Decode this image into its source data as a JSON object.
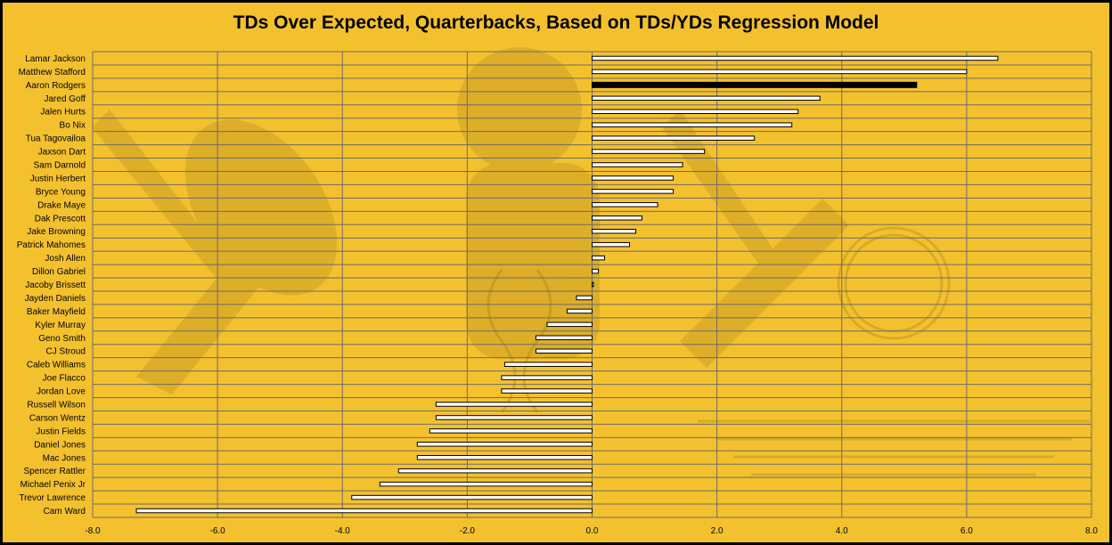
{
  "chart_data": {
    "type": "bar",
    "orientation": "horizontal",
    "title": "TDs Over Expected, Quarterbacks, Based on TDs/YDs Regression Model",
    "categories": [
      "Lamar Jackson",
      "Matthew Stafford",
      "Aaron Rodgers",
      "Jared Goff",
      "Jalen Hurts",
      "Bo Nix",
      "Tua Tagovailoa",
      "Jaxson Dart",
      "Sam Darnold",
      "Justin Herbert",
      "Bryce Young",
      "Drake Maye",
      "Dak Prescott",
      "Jake Browning",
      "Patrick Mahomes",
      "Josh Allen",
      "Dillon Gabriel",
      "Jacoby Brissett",
      "Jayden Daniels",
      "Baker Mayfield",
      "Kyler Murray",
      "Geno Smith",
      "CJ Stroud",
      "Caleb Williams",
      "Joe Flacco",
      "Jordan Love",
      "Russell Wilson",
      "Carson Wentz",
      "Justin Fields",
      "Daniel Jones",
      "Mac Jones",
      "Spencer Rattler",
      "Michael Penix Jr",
      "Trevor Lawrence",
      "Cam Ward"
    ],
    "values": [
      6.5,
      6.0,
      5.2,
      3.65,
      3.3,
      3.2,
      2.6,
      1.8,
      1.45,
      1.3,
      1.3,
      1.05,
      0.8,
      0.7,
      0.6,
      0.2,
      0.1,
      0.02,
      -0.25,
      -0.4,
      -0.72,
      -0.9,
      -0.9,
      -1.4,
      -1.45,
      -1.45,
      -2.5,
      -2.5,
      -2.6,
      -2.8,
      -2.8,
      -3.1,
      -3.4,
      -3.85,
      -7.3
    ],
    "highlight_category": "Aaron Rodgers",
    "xlim": [
      -8.0,
      8.0
    ],
    "x_ticks": [
      "-8.0",
      "-6.0",
      "-4.0",
      "-2.0",
      "0.0",
      "2.0",
      "4.0",
      "6.0",
      "8.0"
    ],
    "x_tick_values": [
      -8,
      -6,
      -4,
      -2,
      0,
      2,
      4,
      6,
      8
    ],
    "grid": true,
    "legend": "none",
    "colors": {
      "background": "#f4c12e",
      "bar_fill": "#ffffff",
      "bar_stroke": "#000000",
      "highlight_fill": "#000000",
      "grid": "#6b6b6b",
      "text": "#000000"
    }
  }
}
